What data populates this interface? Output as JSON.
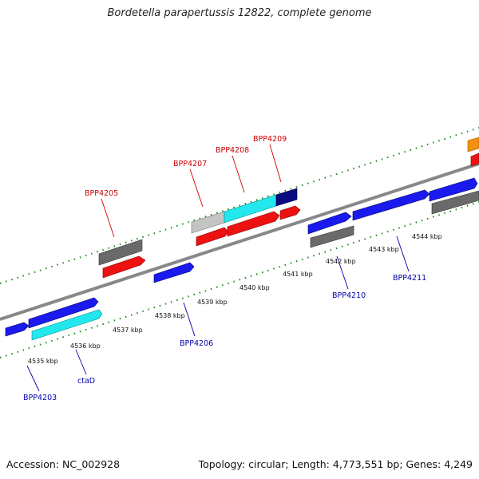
{
  "title": "Bordetella parapertussis 12822, complete genome",
  "footer": {
    "accession": "Accession: NC_002928",
    "summary": "Topology: circular; Length: 4,773,551 bp; Genes: 4,249"
  },
  "kbp_labels": [
    "4535 kbp",
    "4536 kbp",
    "4537 kbp",
    "4538 kbp",
    "4539 kbp",
    "4540 kbp",
    "4541 kbp",
    "4542 kbp",
    "4543 kbp",
    "4544 kbp"
  ],
  "gene_labels_top": [
    "BPP4205",
    "BPP4207",
    "BPP4208",
    "BPP4209"
  ],
  "gene_labels_bottom": [
    "BPP4203",
    "ctaD",
    "BPP4206",
    "BPP4210",
    "BPP4211"
  ],
  "colors": {
    "backbone": "#888888",
    "tick": "#1a8a1a",
    "blue": "#1a1aee",
    "cyan": "#22e8ee",
    "red": "#ee1111",
    "gray": "#6a6a6a",
    "lightgray": "#c4c4c4",
    "navy": "#0a0a80",
    "orange": "#f29010"
  }
}
